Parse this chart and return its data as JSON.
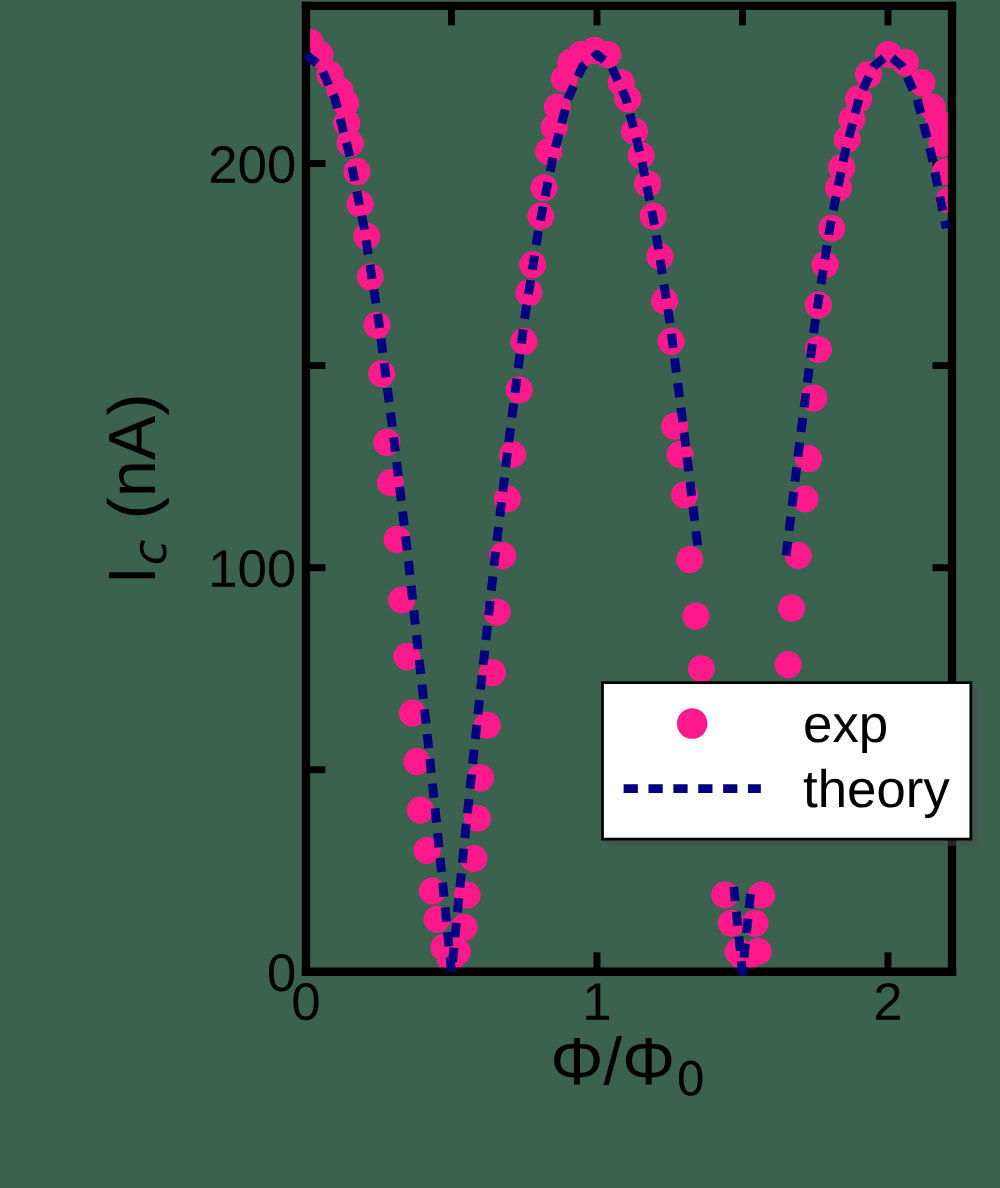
{
  "chart_data": {
    "type": "scatter",
    "xlabel": "Φ/Φ$_{0}$",
    "ylabel": "I$_{c}$ (nA)",
    "series": [
      {
        "name": "exp",
        "color": "#ff1a8c",
        "marker": "circle",
        "x": [
          0.014,
          0.048,
          0.083,
          0.117,
          0.136,
          0.14,
          0.152,
          0.175,
          0.186,
          0.209,
          0.221,
          0.244,
          0.26,
          0.278,
          0.29,
          0.313,
          0.329,
          0.347,
          0.366,
          0.381,
          0.393,
          0.416,
          0.434,
          0.45,
          0.474,
          0.497,
          0.52,
          0.543,
          0.554,
          0.577,
          0.589,
          0.6,
          0.623,
          0.641,
          0.657,
          0.676,
          0.692,
          0.71,
          0.733,
          0.749,
          0.766,
          0.779,
          0.807,
          0.818,
          0.834,
          0.853,
          0.864,
          0.888,
          0.91,
          0.945,
          0.991,
          1.037,
          1.083,
          1.106,
          1.129,
          1.152,
          1.174,
          1.193,
          1.216,
          1.232,
          1.255,
          1.267,
          1.285,
          1.301,
          1.319,
          1.34,
          1.359,
          1.439,
          1.462,
          1.485,
          1.508,
          1.543,
          1.554,
          1.566,
          1.657,
          1.669,
          1.692,
          1.715,
          1.727,
          1.745,
          1.761,
          1.761,
          1.784,
          1.807,
          1.83,
          1.841,
          1.86,
          1.876,
          1.899,
          1.933,
          2.002,
          2.06,
          2.117,
          2.152,
          2.174,
          2.186,
          2.198,
          2.21
        ],
        "values": [
          230,
          227,
          222,
          218,
          215,
          210,
          205,
          198,
          190,
          182,
          172,
          160,
          148,
          131,
          121,
          107,
          92,
          78,
          64,
          52,
          40,
          30,
          20,
          13,
          6,
          3,
          5,
          11,
          19,
          28,
          38,
          48,
          61,
          74,
          89,
          103,
          117,
          128,
          144,
          156,
          168,
          175,
          187,
          194,
          203,
          209,
          214,
          221,
          225,
          227,
          228,
          227,
          220,
          216,
          208,
          202,
          195,
          187,
          177,
          166,
          156,
          135,
          128,
          118,
          102,
          88,
          75,
          19,
          12,
          5,
          3,
          12,
          5,
          19,
          76,
          90,
          103,
          117,
          127,
          142,
          154,
          165,
          175,
          184,
          194,
          199,
          206,
          211,
          216,
          222,
          227,
          225,
          220,
          214,
          210,
          205,
          198,
          191
        ]
      },
      {
        "name": "theory",
        "type": "line",
        "color": "#000080",
        "line_style": "dashed",
        "marker": "none",
        "x": [
          0,
          0.05,
          0.1,
          0.15,
          0.2,
          0.25,
          0.3,
          0.35,
          0.4,
          0.45,
          0.5,
          0.55,
          0.6,
          0.65,
          0.7,
          0.75,
          0.8,
          0.85,
          0.9,
          0.95,
          1.0,
          1.05,
          1.1,
          1.15,
          1.2,
          1.25,
          1.3,
          1.35,
          1.4,
          1.47,
          1.5,
          1.53,
          1.6,
          1.65,
          1.7,
          1.75,
          1.8,
          1.85,
          1.9,
          1.95,
          2.0,
          2.05,
          2.1,
          2.15,
          2.2
        ],
        "values": [
          227,
          224,
          216,
          202,
          184,
          161,
          133,
          103,
          70,
          36,
          0,
          36,
          70,
          103,
          133,
          161,
          184,
          202,
          216,
          224,
          227,
          224,
          216,
          202,
          184,
          161,
          133,
          103,
          null,
          21,
          0,
          21,
          null,
          103,
          133,
          161,
          184,
          202,
          216,
          224,
          227,
          224,
          216,
          202,
          184
        ]
      }
    ],
    "xlim": [
      0,
      2.22
    ],
    "ylim": [
      0,
      239
    ],
    "xticks": [
      0,
      {
        "value": 0.5,
        "label": null
      },
      1,
      {
        "value": 1.5,
        "label": null
      },
      2
    ],
    "yticks": [
      0,
      {
        "value": 50,
        "label": null
      },
      100,
      {
        "value": 150,
        "label": null
      },
      200
    ],
    "grid": false,
    "legend": "lower right"
  }
}
